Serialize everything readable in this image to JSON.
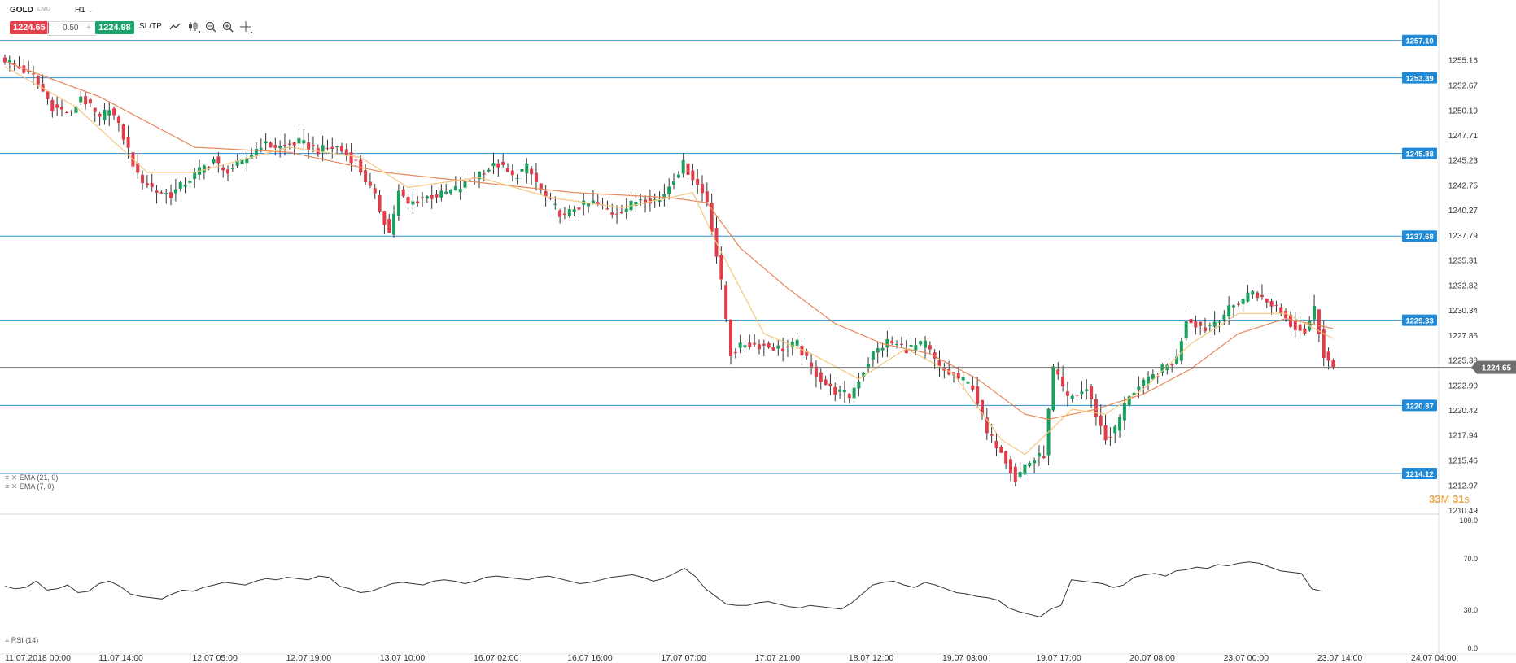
{
  "toolbar": {
    "symbol": "GOLD",
    "symbol_type": "CMD",
    "timeframe": "H1",
    "bid": "1224.65",
    "spread_minus": "–",
    "spread": "0.50",
    "spread_plus": "+",
    "ask": "1224.98",
    "sltp": "SL/TP",
    "icons": [
      "line-chart-icon",
      "candle-type-icon",
      "zoom-out-icon",
      "zoom-in-icon",
      "crosshair-icon"
    ]
  },
  "indicators": {
    "ema21": "EMA (21, 0)",
    "ema7": "EMA (7, 0)",
    "rsi": "RSI (14)"
  },
  "timer": {
    "minutes": "33",
    "m_unit": "M",
    "seconds": "31",
    "s_unit": "s"
  },
  "colors": {
    "bull": "#1aa05c",
    "bear": "#e33b47",
    "level": "#2a8fd6",
    "ema21": "#e8875a",
    "ema7": "#f5c77e",
    "rsi": "#333333",
    "grid": "#ebebeb"
  },
  "chart_data": {
    "type": "candlestick",
    "price_axis": {
      "min": 1210.49,
      "max": 1257.64,
      "ticks": [
        "1255.16",
        "1252.67",
        "1250.19",
        "1247.71",
        "1245.23",
        "1242.75",
        "1240.27",
        "1237.79",
        "1235.31",
        "1232.82",
        "1230.34",
        "1227.86",
        "1225.38",
        "1222.90",
        "1220.42",
        "1217.94",
        "1215.46",
        "1212.97",
        "1210.49"
      ]
    },
    "horizontal_levels": [
      {
        "label": "1257.10",
        "value": 1257.1
      },
      {
        "label": "1253.39",
        "value": 1253.39
      },
      {
        "label": "1245.88",
        "value": 1245.88
      },
      {
        "label": "1237.68",
        "value": 1237.68
      },
      {
        "label": "1229.33",
        "value": 1229.33
      },
      {
        "label": "1220.87",
        "value": 1220.87
      },
      {
        "label": "1214.12",
        "value": 1214.12
      }
    ],
    "current_price": {
      "label": "1224.65",
      "value": 1224.65
    },
    "time_labels": [
      "11.07.2018 00:00",
      "11.07 14:00",
      "12.07 05:00",
      "12.07 19:00",
      "13.07 10:00",
      "16.07 02:00",
      "16.07 16:00",
      "17.07 07:00",
      "17.07 21:00",
      "18.07 12:00",
      "19.07 03:00",
      "19.07 17:00",
      "20.07 08:00",
      "23.07 00:00",
      "23.07 14:00",
      "24.07 04:00"
    ],
    "close_path": [
      [
        0,
        1255.2
      ],
      [
        6,
        1253.5
      ],
      [
        10,
        1250.5
      ],
      [
        14,
        1249.8
      ],
      [
        16,
        1251.6
      ],
      [
        20,
        1249.2
      ],
      [
        22,
        1250.6
      ],
      [
        25,
        1247.5
      ],
      [
        28,
        1243.6
      ],
      [
        32,
        1242.1
      ],
      [
        35,
        1241.8
      ],
      [
        38,
        1243.0
      ],
      [
        41,
        1244.2
      ],
      [
        44,
        1245.3
      ],
      [
        46,
        1244.0
      ],
      [
        50,
        1245.0
      ],
      [
        54,
        1246.8
      ],
      [
        58,
        1246.5
      ],
      [
        62,
        1247.0
      ],
      [
        66,
        1246.2
      ],
      [
        70,
        1246.5
      ],
      [
        74,
        1245.0
      ],
      [
        78,
        1241.5
      ],
      [
        81,
        1238.0
      ],
      [
        83,
        1242.0
      ],
      [
        85,
        1240.8
      ],
      [
        88,
        1241.5
      ],
      [
        92,
        1241.8
      ],
      [
        96,
        1242.5
      ],
      [
        100,
        1244.0
      ],
      [
        104,
        1244.8
      ],
      [
        107,
        1243.5
      ],
      [
        110,
        1244.5
      ],
      [
        114,
        1241.5
      ],
      [
        118,
        1239.5
      ],
      [
        120,
        1240.5
      ],
      [
        124,
        1241.0
      ],
      [
        128,
        1240.0
      ],
      [
        131,
        1240.5
      ],
      [
        134,
        1241.5
      ],
      [
        138,
        1241.2
      ],
      [
        141,
        1243.5
      ],
      [
        143,
        1244.8
      ],
      [
        145,
        1243.5
      ],
      [
        148,
        1241.2
      ],
      [
        151,
        1233.0
      ],
      [
        153,
        1226.0
      ],
      [
        156,
        1227.0
      ],
      [
        160,
        1226.8
      ],
      [
        164,
        1226.5
      ],
      [
        167,
        1227.0
      ],
      [
        170,
        1224.5
      ],
      [
        174,
        1222.5
      ],
      [
        178,
        1221.8
      ],
      [
        180,
        1223.5
      ],
      [
        183,
        1226.0
      ],
      [
        186,
        1227.2
      ],
      [
        190,
        1226.5
      ],
      [
        194,
        1227.0
      ],
      [
        197,
        1224.5
      ],
      [
        200,
        1223.8
      ],
      [
        204,
        1222.8
      ],
      [
        207,
        1218.0
      ],
      [
        210,
        1216.5
      ],
      [
        213,
        1213.5
      ],
      [
        215,
        1215.0
      ],
      [
        219,
        1216.0
      ],
      [
        221,
        1224.5
      ],
      [
        224,
        1221.5
      ],
      [
        228,
        1222.5
      ],
      [
        232,
        1217.5
      ],
      [
        234,
        1218.5
      ],
      [
        237,
        1222.0
      ],
      [
        240,
        1223.0
      ],
      [
        244,
        1224.5
      ],
      [
        247,
        1225.5
      ],
      [
        249,
        1229.5
      ],
      [
        253,
        1228.5
      ],
      [
        257,
        1230.0
      ],
      [
        261,
        1231.5
      ],
      [
        263,
        1232.3
      ],
      [
        266,
        1231.0
      ],
      [
        268,
        1230.8
      ],
      [
        271,
        1229.0
      ],
      [
        274,
        1228.2
      ],
      [
        276,
        1230.5
      ],
      [
        278,
        1226.0
      ],
      [
        280,
        1224.5
      ]
    ],
    "ema21_path": [
      [
        0,
        1255.0
      ],
      [
        20,
        1251.5
      ],
      [
        40,
        1246.5
      ],
      [
        60,
        1246.0
      ],
      [
        80,
        1244.0
      ],
      [
        100,
        1243.0
      ],
      [
        120,
        1242.0
      ],
      [
        140,
        1241.5
      ],
      [
        148,
        1241.0
      ],
      [
        155,
        1236.5
      ],
      [
        165,
        1232.5
      ],
      [
        175,
        1229.0
      ],
      [
        185,
        1227.0
      ],
      [
        195,
        1226.0
      ],
      [
        205,
        1223.5
      ],
      [
        215,
        1220.0
      ],
      [
        220,
        1219.5
      ],
      [
        230,
        1220.5
      ],
      [
        240,
        1222.0
      ],
      [
        250,
        1224.5
      ],
      [
        260,
        1228.0
      ],
      [
        270,
        1229.5
      ],
      [
        280,
        1228.5
      ]
    ],
    "ema7_path": [
      [
        0,
        1254.5
      ],
      [
        15,
        1250.5
      ],
      [
        30,
        1244.0
      ],
      [
        40,
        1244.0
      ],
      [
        60,
        1246.5
      ],
      [
        75,
        1245.5
      ],
      [
        85,
        1242.5
      ],
      [
        100,
        1243.5
      ],
      [
        115,
        1241.5
      ],
      [
        130,
        1240.5
      ],
      [
        145,
        1242.0
      ],
      [
        150,
        1237.0
      ],
      [
        160,
        1228.0
      ],
      [
        170,
        1226.0
      ],
      [
        180,
        1223.5
      ],
      [
        190,
        1226.5
      ],
      [
        200,
        1224.0
      ],
      [
        210,
        1217.5
      ],
      [
        215,
        1216.0
      ],
      [
        225,
        1220.5
      ],
      [
        232,
        1220.0
      ],
      [
        240,
        1222.5
      ],
      [
        250,
        1227.0
      ],
      [
        260,
        1230.0
      ],
      [
        270,
        1230.0
      ],
      [
        280,
        1227.5
      ]
    ],
    "rsi": {
      "label": "RSI (14)",
      "ticks": [
        "100.0",
        "70.0",
        "30.0",
        "0.0"
      ],
      "values": [
        48,
        46,
        47,
        52,
        45,
        46,
        49,
        43,
        44,
        50,
        52,
        48,
        42,
        40,
        39,
        38,
        42,
        45,
        44,
        47,
        49,
        51,
        50,
        49,
        52,
        54,
        53,
        55,
        54,
        53,
        56,
        55,
        48,
        46,
        43,
        44,
        47,
        50,
        51,
        50,
        49,
        52,
        53,
        52,
        50,
        52,
        55,
        56,
        55,
        54,
        53,
        55,
        56,
        54,
        52,
        50,
        51,
        53,
        55,
        56,
        57,
        55,
        52,
        54,
        58,
        62,
        56,
        46,
        40,
        34,
        33,
        33,
        35,
        36,
        34,
        32,
        31,
        33,
        32,
        31,
        30,
        35,
        42,
        49,
        51,
        52,
        49,
        47,
        51,
        49,
        46,
        43,
        42,
        40,
        39,
        37,
        31,
        28,
        26,
        24,
        30,
        33,
        53,
        52,
        51,
        50,
        47,
        49,
        55,
        57,
        58,
        56,
        60,
        61,
        63,
        62,
        65,
        64,
        66,
        67,
        66,
        63,
        60,
        59,
        58,
        46,
        44
      ]
    }
  }
}
